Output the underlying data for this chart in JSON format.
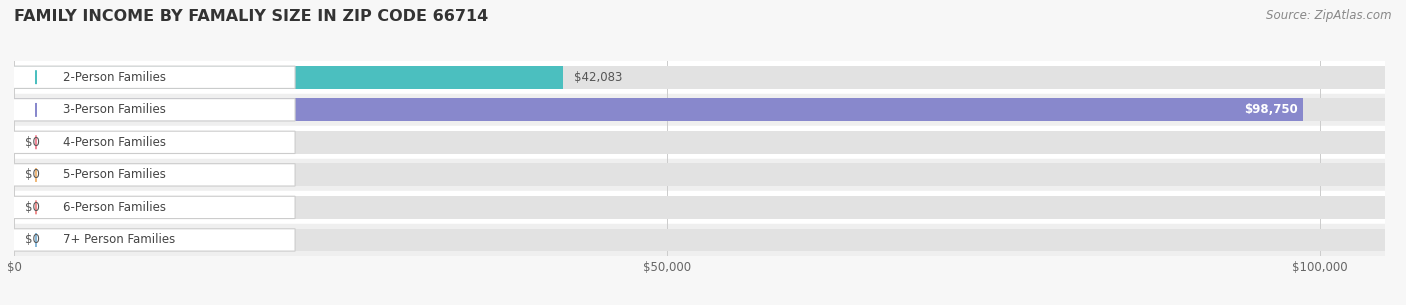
{
  "title": "FAMILY INCOME BY FAMALIY SIZE IN ZIP CODE 66714",
  "source": "Source: ZipAtlas.com",
  "categories": [
    "2-Person Families",
    "3-Person Families",
    "4-Person Families",
    "5-Person Families",
    "6-Person Families",
    "7+ Person Families"
  ],
  "values": [
    42083,
    98750,
    0,
    0,
    0,
    0
  ],
  "bar_colors": [
    "#4BBFBF",
    "#8888CC",
    "#F08898",
    "#F0B878",
    "#F09090",
    "#88B8D8"
  ],
  "value_labels": [
    "$42,083",
    "$98,750",
    "$0",
    "$0",
    "$0",
    "$0"
  ],
  "value_label_inside": [
    false,
    true,
    false,
    false,
    false,
    false
  ],
  "xlim_max": 105000,
  "xticks": [
    0,
    50000,
    100000
  ],
  "xticklabels": [
    "$0",
    "$50,000",
    "$100,000"
  ],
  "bg_color": "#f7f7f7",
  "row_colors": [
    "#ffffff",
    "#efefef"
  ],
  "bar_bg_color": "#e2e2e2",
  "title_fontsize": 11.5,
  "source_fontsize": 8.5,
  "label_fontsize": 8.5,
  "value_fontsize": 8.5
}
